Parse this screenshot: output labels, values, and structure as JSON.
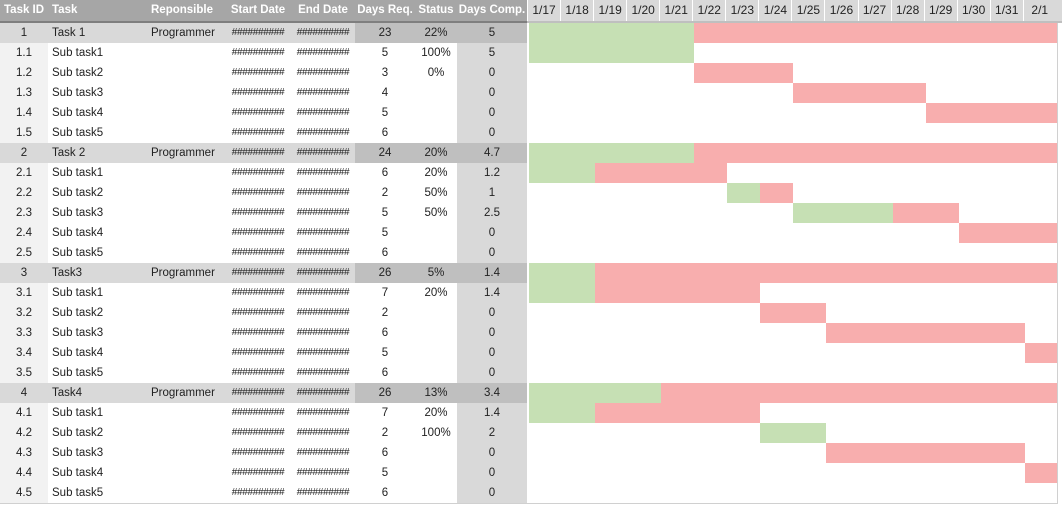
{
  "headers": {
    "task_id": "Task ID",
    "task": "Task",
    "responsible": "Reponsible",
    "start_date": "Start Date",
    "end_date": "End Date",
    "days_req": "Days Req.",
    "status": "Status",
    "days_comp": "Days Comp."
  },
  "dates": [
    "1/17",
    "1/18",
    "1/19",
    "1/20",
    "1/21",
    "1/22",
    "1/23",
    "1/24",
    "1/25",
    "1/26",
    "1/27",
    "1/28",
    "1/29",
    "1/30",
    "1/31",
    "2/1"
  ],
  "colors": {
    "header_bg": "#a6a6a6",
    "date_header_bg": "#d9d9d9",
    "group_row_bg": "#d9d9d9",
    "group_row_dark_bg": "#bfbfbf",
    "days_comp_bg": "#d9d9d9",
    "id_col_bg": "#f2f2f2",
    "complete": "#c6e0b4",
    "remaining": "#f8aeae"
  },
  "tasks": [
    {
      "id": "1",
      "task": "Task 1",
      "responsible": "Programmer",
      "start": "##########",
      "end": "##########",
      "days_req": "23",
      "status": "22%",
      "days_comp": "5",
      "group": true,
      "start_day": 0,
      "duration": 16,
      "done": 5
    },
    {
      "id": "1.1",
      "task": "Sub task1",
      "responsible": "",
      "start": "##########",
      "end": "##########",
      "days_req": "5",
      "status": "100%",
      "days_comp": "5",
      "group": false,
      "start_day": 0,
      "duration": 5,
      "done": 5
    },
    {
      "id": "1.2",
      "task": "Sub task2",
      "responsible": "",
      "start": "##########",
      "end": "##########",
      "days_req": "3",
      "status": "0%",
      "days_comp": "0",
      "group": false,
      "start_day": 5,
      "duration": 3,
      "done": 0
    },
    {
      "id": "1.3",
      "task": "Sub task3",
      "responsible": "",
      "start": "##########",
      "end": "##########",
      "days_req": "4",
      "status": "",
      "days_comp": "0",
      "group": false,
      "start_day": 8,
      "duration": 4,
      "done": 0
    },
    {
      "id": "1.4",
      "task": "Sub task4",
      "responsible": "",
      "start": "##########",
      "end": "##########",
      "days_req": "5",
      "status": "",
      "days_comp": "0",
      "group": false,
      "start_day": 12,
      "duration": 4,
      "done": 0
    },
    {
      "id": "1.5",
      "task": "Sub task5",
      "responsible": "",
      "start": "##########",
      "end": "##########",
      "days_req": "6",
      "status": "",
      "days_comp": "0",
      "group": false,
      "start_day": 0,
      "duration": 0,
      "done": 0
    },
    {
      "id": "2",
      "task": "Task 2",
      "responsible": "Programmer",
      "start": "##########",
      "end": "##########",
      "days_req": "24",
      "status": "20%",
      "days_comp": "4.7",
      "group": true,
      "start_day": 0,
      "duration": 16,
      "done": 5
    },
    {
      "id": "2.1",
      "task": "Sub task1",
      "responsible": "",
      "start": "##########",
      "end": "##########",
      "days_req": "6",
      "status": "20%",
      "days_comp": "1.2",
      "group": false,
      "start_day": 0,
      "duration": 6,
      "done": 2
    },
    {
      "id": "2.2",
      "task": "Sub task2",
      "responsible": "",
      "start": "##########",
      "end": "##########",
      "days_req": "2",
      "status": "50%",
      "days_comp": "1",
      "group": false,
      "start_day": 6,
      "duration": 2,
      "done": 1
    },
    {
      "id": "2.3",
      "task": "Sub task3",
      "responsible": "",
      "start": "##########",
      "end": "##########",
      "days_req": "5",
      "status": "50%",
      "days_comp": "2.5",
      "group": false,
      "start_day": 8,
      "duration": 5,
      "done": 3
    },
    {
      "id": "2.4",
      "task": "Sub task4",
      "responsible": "",
      "start": "##########",
      "end": "##########",
      "days_req": "5",
      "status": "",
      "days_comp": "0",
      "group": false,
      "start_day": 13,
      "duration": 3,
      "done": 0
    },
    {
      "id": "2.5",
      "task": "Sub task5",
      "responsible": "",
      "start": "##########",
      "end": "##########",
      "days_req": "6",
      "status": "",
      "days_comp": "0",
      "group": false,
      "start_day": 0,
      "duration": 0,
      "done": 0
    },
    {
      "id": "3",
      "task": "Task3",
      "responsible": "Programmer",
      "start": "##########",
      "end": "##########",
      "days_req": "26",
      "status": "5%",
      "days_comp": "1.4",
      "group": true,
      "start_day": 0,
      "duration": 16,
      "done": 2
    },
    {
      "id": "3.1",
      "task": "Sub task1",
      "responsible": "",
      "start": "##########",
      "end": "##########",
      "days_req": "7",
      "status": "20%",
      "days_comp": "1.4",
      "group": false,
      "start_day": 0,
      "duration": 7,
      "done": 2
    },
    {
      "id": "3.2",
      "task": "Sub task2",
      "responsible": "",
      "start": "##########",
      "end": "##########",
      "days_req": "2",
      "status": "",
      "days_comp": "0",
      "group": false,
      "start_day": 7,
      "duration": 2,
      "done": 0
    },
    {
      "id": "3.3",
      "task": "Sub task3",
      "responsible": "",
      "start": "##########",
      "end": "##########",
      "days_req": "6",
      "status": "",
      "days_comp": "0",
      "group": false,
      "start_day": 9,
      "duration": 6,
      "done": 0
    },
    {
      "id": "3.4",
      "task": "Sub task4",
      "responsible": "",
      "start": "##########",
      "end": "##########",
      "days_req": "5",
      "status": "",
      "days_comp": "0",
      "group": false,
      "start_day": 15,
      "duration": 1,
      "done": 0
    },
    {
      "id": "3.5",
      "task": "Sub task5",
      "responsible": "",
      "start": "##########",
      "end": "##########",
      "days_req": "6",
      "status": "",
      "days_comp": "0",
      "group": false,
      "start_day": 0,
      "duration": 0,
      "done": 0
    },
    {
      "id": "4",
      "task": "Task4",
      "responsible": "Programmer",
      "start": "##########",
      "end": "##########",
      "days_req": "26",
      "status": "13%",
      "days_comp": "3.4",
      "group": true,
      "start_day": 0,
      "duration": 16,
      "done": 4
    },
    {
      "id": "4.1",
      "task": "Sub task1",
      "responsible": "",
      "start": "##########",
      "end": "##########",
      "days_req": "7",
      "status": "20%",
      "days_comp": "1.4",
      "group": false,
      "start_day": 0,
      "duration": 7,
      "done": 2
    },
    {
      "id": "4.2",
      "task": "Sub task2",
      "responsible": "",
      "start": "##########",
      "end": "##########",
      "days_req": "2",
      "status": "100%",
      "days_comp": "2",
      "group": false,
      "start_day": 7,
      "duration": 2,
      "done": 2
    },
    {
      "id": "4.3",
      "task": "Sub task3",
      "responsible": "",
      "start": "##########",
      "end": "##########",
      "days_req": "6",
      "status": "",
      "days_comp": "0",
      "group": false,
      "start_day": 9,
      "duration": 6,
      "done": 0
    },
    {
      "id": "4.4",
      "task": "Sub task4",
      "responsible": "",
      "start": "##########",
      "end": "##########",
      "days_req": "5",
      "status": "",
      "days_comp": "0",
      "group": false,
      "start_day": 15,
      "duration": 1,
      "done": 0
    },
    {
      "id": "4.5",
      "task": "Sub task5",
      "responsible": "",
      "start": "##########",
      "end": "##########",
      "days_req": "6",
      "status": "",
      "days_comp": "0",
      "group": false,
      "start_day": 0,
      "duration": 0,
      "done": 0
    }
  ]
}
